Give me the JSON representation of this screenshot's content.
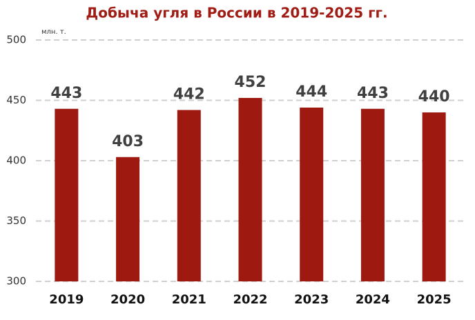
{
  "chart_data": {
    "type": "bar",
    "title": "Добыча угля в России в 2019-2025 гг.",
    "unit": "млн. т.",
    "categories": [
      "2019",
      "2020",
      "2021",
      "2022",
      "2023",
      "2024",
      "2025"
    ],
    "values": [
      443,
      403,
      442,
      452,
      444,
      443,
      440
    ],
    "color": "#9e1a10",
    "ylim": [
      300,
      500
    ],
    "yticks": [
      300,
      350,
      400,
      450,
      500
    ],
    "grid": true,
    "data_labels": true
  }
}
